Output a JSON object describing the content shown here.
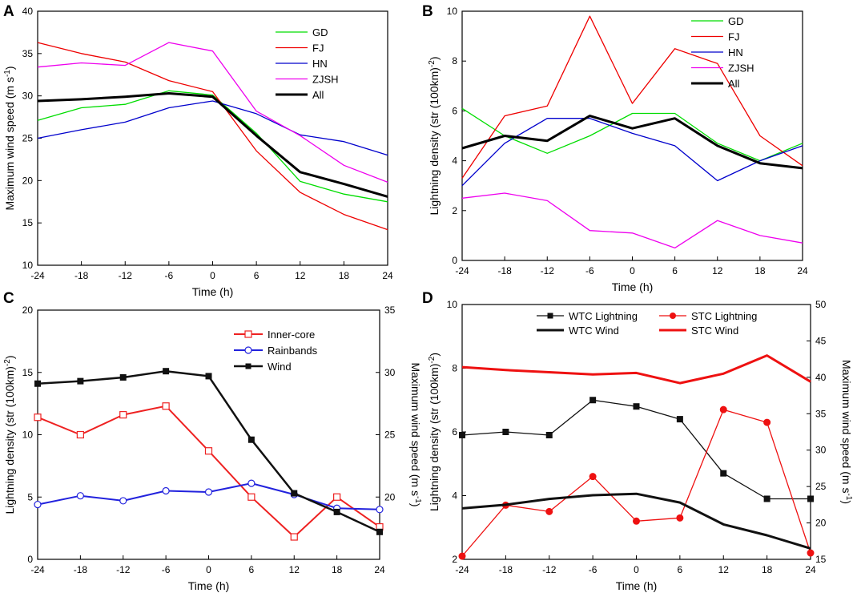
{
  "chart_data": [
    {
      "panel": "A",
      "type": "line",
      "xlabel": "Time (h)",
      "ylabel": "Maximum wind speed (m s⁻¹)",
      "xlim": [
        -24,
        24
      ],
      "ylim": [
        10,
        40
      ],
      "x": [
        -24,
        -18,
        -12,
        -6,
        0,
        6,
        12,
        18,
        24
      ],
      "xticks": [
        "-24",
        "-18",
        "-12",
        "-6",
        "0",
        "6",
        "12",
        "18",
        "24"
      ],
      "yticks": [
        "10",
        "15",
        "20",
        "25",
        "30",
        "35",
        "40"
      ],
      "legend_position": "top-right",
      "series": [
        {
          "name": "GD",
          "color": "#00dd00",
          "width": 1.3,
          "values": [
            27.1,
            28.6,
            29.0,
            30.6,
            30.1,
            25.6,
            19.9,
            18.4,
            17.5
          ]
        },
        {
          "name": "FJ",
          "color": "#ee0000",
          "width": 1.3,
          "values": [
            36.3,
            35.0,
            34.0,
            31.8,
            30.5,
            23.5,
            18.6,
            16.0,
            14.2
          ]
        },
        {
          "name": "HN",
          "color": "#0000cc",
          "width": 1.3,
          "values": [
            25.0,
            26.0,
            26.9,
            28.6,
            29.4,
            27.9,
            25.4,
            24.6,
            23.0
          ]
        },
        {
          "name": "ZJSH",
          "color": "#ee00ee",
          "width": 1.3,
          "values": [
            33.4,
            33.9,
            33.6,
            36.3,
            35.3,
            28.2,
            25.3,
            21.8,
            19.8
          ]
        },
        {
          "name": "All",
          "color": "#000000",
          "width": 3,
          "values": [
            29.4,
            29.6,
            29.9,
            30.3,
            29.9,
            25.3,
            21.0,
            19.6,
            18.1
          ]
        }
      ]
    },
    {
      "panel": "B",
      "type": "line",
      "xlabel": "Time (h)",
      "ylabel": "Lightning density (str (100km)⁻²)",
      "xlim": [
        -24,
        24
      ],
      "ylim": [
        0,
        10
      ],
      "x": [
        -24,
        -18,
        -12,
        -6,
        0,
        6,
        12,
        18,
        24
      ],
      "xticks": [
        "-24",
        "-18",
        "-12",
        "-6",
        "0",
        "6",
        "12",
        "18",
        "24"
      ],
      "yticks": [
        "0",
        "2",
        "4",
        "6",
        "8",
        "10"
      ],
      "legend_position": "top-right",
      "series": [
        {
          "name": "GD",
          "color": "#00dd00",
          "width": 1.3,
          "values": [
            6.1,
            5.0,
            4.3,
            5.0,
            5.9,
            5.9,
            4.7,
            4.0,
            4.7
          ]
        },
        {
          "name": "FJ",
          "color": "#ee0000",
          "width": 1.3,
          "values": [
            3.3,
            5.8,
            6.2,
            9.8,
            6.3,
            8.5,
            7.9,
            5.0,
            3.8
          ]
        },
        {
          "name": "HN",
          "color": "#0000cc",
          "width": 1.3,
          "values": [
            3.0,
            4.7,
            5.7,
            5.7,
            5.1,
            4.6,
            3.2,
            4.0,
            4.6
          ]
        },
        {
          "name": "ZJSH",
          "color": "#ee00ee",
          "width": 1.3,
          "values": [
            2.5,
            2.7,
            2.4,
            1.2,
            1.1,
            0.5,
            1.6,
            1.0,
            0.7
          ]
        },
        {
          "name": "All",
          "color": "#000000",
          "width": 3,
          "values": [
            4.5,
            5.0,
            4.8,
            5.8,
            5.3,
            5.7,
            4.6,
            3.9,
            3.7
          ]
        }
      ]
    },
    {
      "panel": "C",
      "type": "line",
      "xlabel": "Time (h)",
      "ylabel": "Lightning density (str (100km)⁻²)",
      "ylabel_right": "Maximum wind speed (m s⁻¹)",
      "xlim": [
        -24,
        24
      ],
      "ylim": [
        0,
        20
      ],
      "ylim_right": [
        15,
        35
      ],
      "x": [
        -24,
        -18,
        -12,
        -6,
        0,
        6,
        12,
        18,
        24
      ],
      "xticks": [
        "-24",
        "-18",
        "-12",
        "-6",
        "0",
        "6",
        "12",
        "18",
        "24"
      ],
      "yticks": [
        "0",
        "5",
        "10",
        "15",
        "20"
      ],
      "yticks_right": [
        "20",
        "25",
        "30",
        "35"
      ],
      "legend_position": "top-right",
      "series": [
        {
          "name": "Inner-core",
          "color": "#ee2222",
          "width": 2,
          "marker": "square-open",
          "axis": "left",
          "values": [
            11.4,
            10.0,
            11.6,
            12.3,
            8.7,
            5.0,
            1.8,
            5.0,
            2.6
          ]
        },
        {
          "name": "Rainbands",
          "color": "#2222dd",
          "width": 2,
          "marker": "circle-open",
          "axis": "left",
          "values": [
            4.4,
            5.1,
            4.7,
            5.5,
            5.4,
            6.1,
            5.2,
            4.1,
            4.0
          ]
        },
        {
          "name": "Wind",
          "color": "#111111",
          "width": 2.5,
          "marker": "square-filled",
          "axis": "right",
          "values": [
            29.1,
            29.3,
            29.6,
            30.1,
            29.7,
            24.6,
            20.3,
            18.8,
            17.2
          ]
        }
      ]
    },
    {
      "panel": "D",
      "type": "line",
      "xlabel": "Time (h)",
      "ylabel": "Lightning density (str (100km)⁻²)",
      "ylabel_right": "Maximum wind speed (m s⁻¹)",
      "xlim": [
        -24,
        24
      ],
      "ylim": [
        2,
        10
      ],
      "ylim_right": [
        15,
        50
      ],
      "x": [
        -24,
        -18,
        -12,
        -6,
        0,
        6,
        12,
        18,
        24
      ],
      "xticks": [
        "-24",
        "-18",
        "-12",
        "-6",
        "0",
        "6",
        "12",
        "18",
        "24"
      ],
      "yticks": [
        "2",
        "4",
        "6",
        "8",
        "10"
      ],
      "yticks_right": [
        "15",
        "20",
        "25",
        "30",
        "35",
        "40",
        "45",
        "50"
      ],
      "legend_position": "top",
      "series": [
        {
          "name": "WTC Lightning",
          "color": "#111111",
          "width": 1.3,
          "marker": "square-filled",
          "axis": "left",
          "values": [
            5.9,
            6.0,
            5.9,
            7.0,
            6.8,
            6.4,
            4.7,
            3.9,
            3.9
          ]
        },
        {
          "name": "STC Lightning",
          "color": "#ee1111",
          "width": 1.3,
          "marker": "circle-filled",
          "axis": "left",
          "values": [
            2.1,
            3.7,
            3.5,
            4.6,
            3.2,
            3.3,
            6.7,
            6.3,
            2.2
          ]
        },
        {
          "name": "WTC Wind",
          "color": "#111111",
          "width": 3,
          "marker": "none",
          "axis": "right",
          "values": [
            22.0,
            22.5,
            23.3,
            23.8,
            24.0,
            22.8,
            19.8,
            18.3,
            16.5
          ]
        },
        {
          "name": "STC Wind",
          "color": "#ee1111",
          "width": 3,
          "marker": "none",
          "axis": "right",
          "values": [
            41.4,
            41.0,
            40.7,
            40.4,
            40.6,
            39.2,
            40.5,
            43.0,
            39.4
          ]
        }
      ]
    }
  ]
}
